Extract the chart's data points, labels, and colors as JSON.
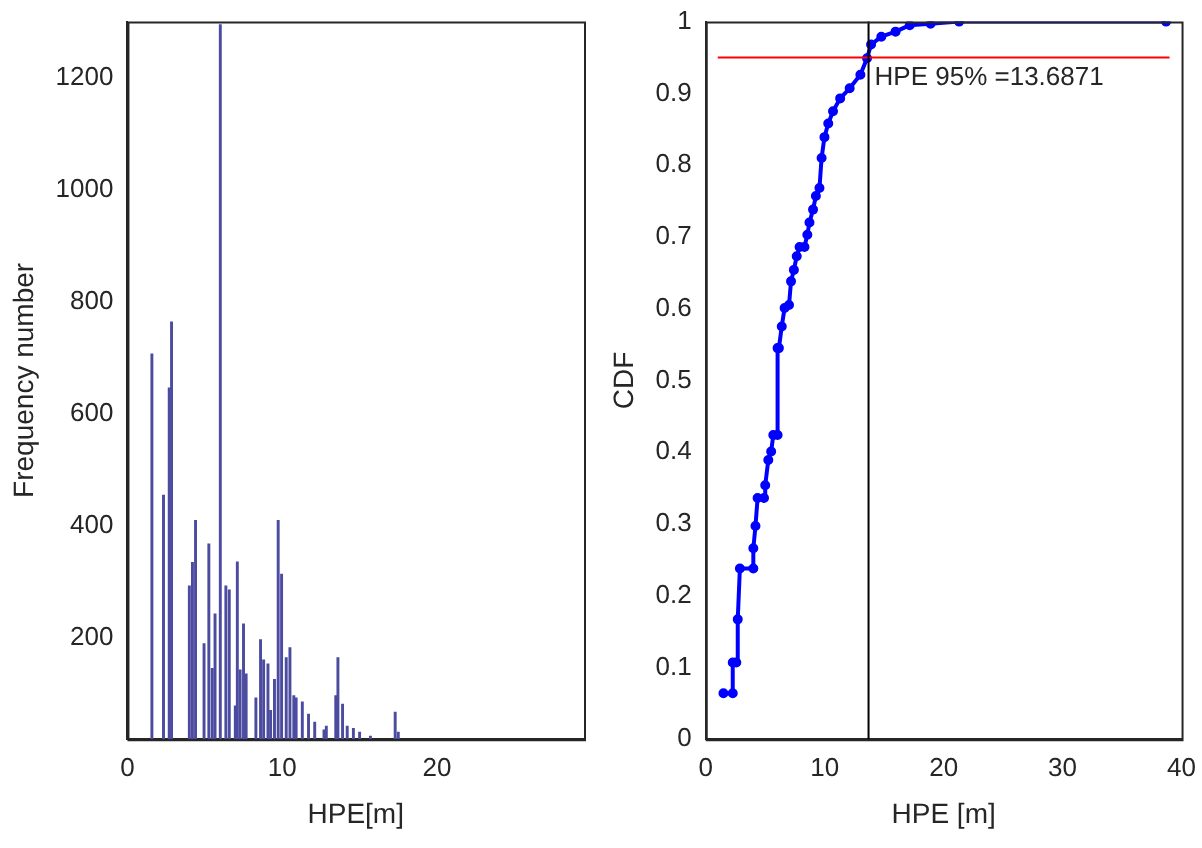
{
  "chart_data": [
    {
      "type": "bar",
      "xlabel": "HPE[m]",
      "ylabel": "Frequency number",
      "color": "#4b4ba0",
      "x": [
        1.58,
        2.33,
        2.7,
        2.85,
        4.0,
        4.2,
        4.4,
        4.95,
        5.26,
        5.48,
        5.66,
        6.0,
        6.36,
        6.58,
        6.97,
        7.1,
        7.28,
        7.5,
        7.67,
        8.3,
        8.6,
        8.8,
        9.08,
        9.25,
        9.5,
        9.74,
        9.96,
        10.26,
        10.5,
        10.75,
        10.9,
        11.3,
        11.7,
        12.1,
        12.7,
        12.85,
        13.46,
        13.6,
        13.9,
        14.2,
        14.6,
        15.0,
        15.7,
        17.3,
        17.5
      ],
      "values": [
        707,
        455,
        646,
        764,
        293,
        335,
        410,
        190,
        368,
        146,
        243,
        1294,
        293,
        286,
        79,
        336,
        143,
        225,
        136,
        93,
        197,
        161,
        154,
        71,
        126,
        410,
        314,
        165,
        183,
        97,
        93,
        86,
        64,
        50,
        36,
        43,
        97,
        165,
        82,
        43,
        39,
        32,
        25,
        68,
        32
      ],
      "xlim": [
        0,
        29.5
      ],
      "xticks": [
        0,
        10,
        20
      ],
      "ylim": [
        20,
        1300
      ],
      "yticks": [
        200,
        400,
        600,
        800,
        1000,
        1200
      ]
    },
    {
      "type": "line",
      "xlabel": "HPE [m]",
      "ylabel": "CDF",
      "color": "#0000ff",
      "marker": "circle",
      "x": [
        1.49,
        2.27,
        2.27,
        2.57,
        2.69,
        2.87,
        4.0,
        4.0,
        4.18,
        4.36,
        4.9,
        5.0,
        5.26,
        5.5,
        5.68,
        6.04,
        6.04,
        6.15,
        6.39,
        6.63,
        7.0,
        7.17,
        7.41,
        7.65,
        7.89,
        8.3,
        8.54,
        8.72,
        9.02,
        9.26,
        9.56,
        9.74,
        9.98,
        10.3,
        10.7,
        11.3,
        12.1,
        13.0,
        13.56,
        13.9,
        14.76,
        15.96,
        17.15,
        18.9,
        21.3,
        38.7
      ],
      "values": [
        0.064,
        0.064,
        0.107,
        0.107,
        0.167,
        0.238,
        0.238,
        0.266,
        0.297,
        0.336,
        0.336,
        0.354,
        0.389,
        0.401,
        0.424,
        0.424,
        0.545,
        0.545,
        0.575,
        0.601,
        0.605,
        0.638,
        0.654,
        0.673,
        0.686,
        0.686,
        0.703,
        0.72,
        0.738,
        0.757,
        0.768,
        0.81,
        0.839,
        0.858,
        0.875,
        0.893,
        0.907,
        0.926,
        0.949,
        0.968,
        0.979,
        0.986,
        0.995,
        0.997,
        1.0,
        1.0
      ],
      "xlim": [
        0,
        40
      ],
      "xticks": [
        0,
        10,
        20,
        30,
        40
      ],
      "ylim": [
        0,
        1
      ],
      "yticks": [
        0,
        0.1,
        0.2,
        0.3,
        0.4,
        0.5,
        0.6,
        0.7,
        0.8,
        0.9,
        1
      ],
      "ref_lines": [
        {
          "axis": "y",
          "value": 0.95,
          "color": "#ff0000"
        },
        {
          "axis": "x",
          "value": 13.6871,
          "label": "HPE 95% =13.6871",
          "color": "#000000"
        }
      ]
    }
  ]
}
